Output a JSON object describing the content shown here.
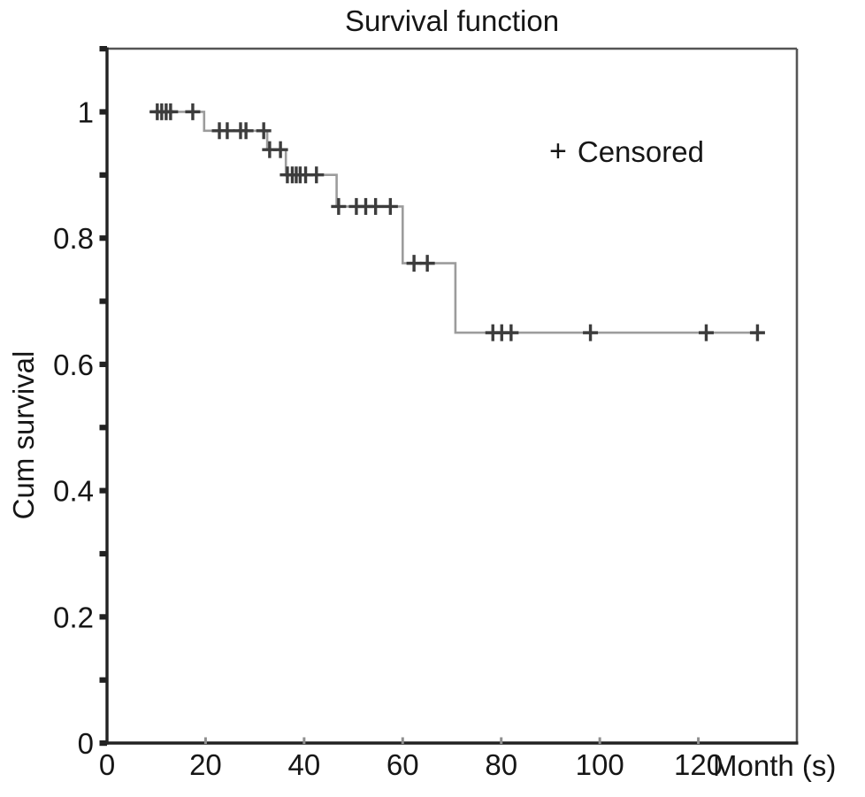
{
  "title": "Survival function",
  "legend": {
    "marker": "+",
    "label": "Censored"
  },
  "colors": {
    "background": "#ffffff",
    "curve": "#9c9c9c",
    "censor": "#3c3c3c",
    "axis_main": "#222222",
    "frame": "#555555",
    "x_tick": "#8f8f8f",
    "text": "#161616"
  },
  "chart_data": {
    "type": "line",
    "subtype": "kaplan-meier-step-function",
    "title": "Survival function",
    "xlabel": "Month (s)",
    "ylabel": "Cum survival",
    "xlim": [
      0,
      140
    ],
    "ylim": [
      0,
      1.1
    ],
    "grid": false,
    "legend_position": "upper-right-inside",
    "x_tick_labels": [
      {
        "v": 0,
        "label": "0"
      },
      {
        "v": 20,
        "label": "20"
      },
      {
        "v": 40,
        "label": "40"
      },
      {
        "v": 60,
        "label": "60"
      },
      {
        "v": 80,
        "label": "80"
      },
      {
        "v": 100,
        "label": "100"
      },
      {
        "v": 120,
        "label": "120"
      }
    ],
    "y_tick_labels": [
      {
        "v": 0,
        "label": "0"
      },
      {
        "v": 0.2,
        "label": "0.2"
      },
      {
        "v": 0.4,
        "label": "0.4"
      },
      {
        "v": 0.6,
        "label": "0.6"
      },
      {
        "v": 0.8,
        "label": "0.8"
      },
      {
        "v": 1,
        "label": "1"
      }
    ],
    "y_minor_ticks": [
      0,
      0.1,
      0.2,
      0.3,
      0.4,
      0.5,
      0.6,
      0.7,
      0.8,
      0.9,
      1.0,
      1.1
    ],
    "x_minor_ticks": [
      20,
      40,
      60,
      80,
      100,
      120
    ],
    "curve_start": {
      "t": 8.6,
      "s": 1.0
    },
    "curve_end_t": 133.4,
    "steps": [
      {
        "t_start": 8.6,
        "t_end": 19.7,
        "s": 1.0
      },
      {
        "t_start": 19.7,
        "t_end": 32.5,
        "s": 0.97
      },
      {
        "t_start": 32.5,
        "t_end": 36.3,
        "s": 0.94
      },
      {
        "t_start": 36.3,
        "t_end": 46.6,
        "s": 0.9
      },
      {
        "t_start": 46.6,
        "t_end": 60.0,
        "s": 0.85
      },
      {
        "t_start": 60.0,
        "t_end": 70.7,
        "s": 0.76
      },
      {
        "t_start": 70.7,
        "t_end": 133.4,
        "s": 0.65
      }
    ],
    "event_times": [
      19.7,
      32.5,
      36.3,
      46.6,
      60.0,
      70.7
    ],
    "censored": [
      {
        "t": 10.2,
        "s": 1.0
      },
      {
        "t": 11.1,
        "s": 1.0
      },
      {
        "t": 12.0,
        "s": 1.0
      },
      {
        "t": 12.9,
        "s": 1.0
      },
      {
        "t": 17.4,
        "s": 1.0
      },
      {
        "t": 22.8,
        "s": 0.97
      },
      {
        "t": 24.4,
        "s": 0.97
      },
      {
        "t": 27.1,
        "s": 0.97
      },
      {
        "t": 28.2,
        "s": 0.97
      },
      {
        "t": 31.8,
        "s": 0.97
      },
      {
        "t": 33.0,
        "s": 0.94
      },
      {
        "t": 35.2,
        "s": 0.94
      },
      {
        "t": 36.6,
        "s": 0.9
      },
      {
        "t": 37.6,
        "s": 0.9
      },
      {
        "t": 38.4,
        "s": 0.9
      },
      {
        "t": 39.2,
        "s": 0.9
      },
      {
        "t": 40.3,
        "s": 0.9
      },
      {
        "t": 42.5,
        "s": 0.9
      },
      {
        "t": 47.0,
        "s": 0.85
      },
      {
        "t": 50.6,
        "s": 0.85
      },
      {
        "t": 52.5,
        "s": 0.85
      },
      {
        "t": 54.5,
        "s": 0.85
      },
      {
        "t": 57.5,
        "s": 0.85
      },
      {
        "t": 62.3,
        "s": 0.76
      },
      {
        "t": 65.0,
        "s": 0.76
      },
      {
        "t": 78.3,
        "s": 0.65
      },
      {
        "t": 80.1,
        "s": 0.65
      },
      {
        "t": 82.0,
        "s": 0.65
      },
      {
        "t": 98.1,
        "s": 0.65
      },
      {
        "t": 121.6,
        "s": 0.65
      },
      {
        "t": 132.0,
        "s": 0.65
      }
    ]
  }
}
